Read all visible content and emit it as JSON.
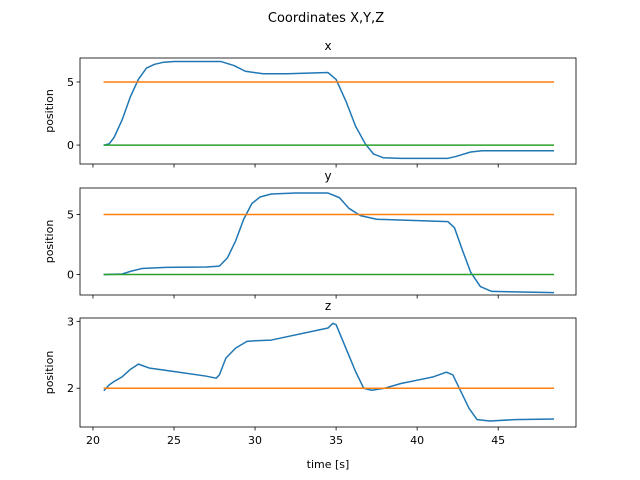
{
  "chart_data": {
    "type": "line",
    "title": "Coordinates X,Y,Z",
    "xlabel": "time [s]",
    "xlim": [
      19.2,
      49.8
    ],
    "xticks": [
      20,
      25,
      30,
      35,
      40,
      45
    ],
    "colors": [
      "#1f77b4",
      "#ff7f0e",
      "#2ca02c"
    ],
    "subplots": [
      {
        "title": "x",
        "ylabel": "position",
        "ylim": [
          -1.5,
          6.9
        ],
        "yticks": [
          0,
          5
        ],
        "show_xticklabels": false,
        "series": [
          {
            "color": "#1f77b4",
            "points": [
              [
                20.7,
                0
              ],
              [
                21.0,
                0.1
              ],
              [
                21.3,
                0.6
              ],
              [
                21.8,
                2.0
              ],
              [
                22.3,
                3.8
              ],
              [
                22.8,
                5.2
              ],
              [
                23.3,
                6.1
              ],
              [
                23.8,
                6.4
              ],
              [
                24.3,
                6.55
              ],
              [
                25.0,
                6.62
              ],
              [
                27.9,
                6.62
              ],
              [
                28.7,
                6.3
              ],
              [
                29.4,
                5.85
              ],
              [
                30.5,
                5.65
              ],
              [
                32.0,
                5.65
              ],
              [
                34.5,
                5.75
              ],
              [
                35.0,
                5.2
              ],
              [
                35.6,
                3.5
              ],
              [
                36.2,
                1.5
              ],
              [
                36.8,
                0.1
              ],
              [
                37.3,
                -0.7
              ],
              [
                37.9,
                -1.0
              ],
              [
                39.0,
                -1.05
              ],
              [
                41.9,
                -1.05
              ],
              [
                42.4,
                -0.9
              ],
              [
                43.3,
                -0.55
              ],
              [
                44.0,
                -0.45
              ],
              [
                48.4,
                -0.45
              ]
            ]
          },
          {
            "color": "#ff7f0e",
            "points": [
              [
                20.7,
                5
              ],
              [
                48.4,
                5
              ]
            ]
          },
          {
            "color": "#2ca02c",
            "points": [
              [
                20.7,
                0
              ],
              [
                48.4,
                0
              ]
            ]
          }
        ]
      },
      {
        "title": "y",
        "ylabel": "position",
        "ylim": [
          -1.7,
          7.2
        ],
        "yticks": [
          0,
          5
        ],
        "show_xticklabels": false,
        "series": [
          {
            "color": "#1f77b4",
            "points": [
              [
                20.7,
                0
              ],
              [
                21.8,
                0.05
              ],
              [
                22.4,
                0.3
              ],
              [
                23.0,
                0.5
              ],
              [
                24.5,
                0.6
              ],
              [
                27.0,
                0.63
              ],
              [
                27.8,
                0.7
              ],
              [
                28.3,
                1.4
              ],
              [
                28.8,
                2.8
              ],
              [
                29.3,
                4.6
              ],
              [
                29.8,
                5.9
              ],
              [
                30.3,
                6.45
              ],
              [
                31.0,
                6.7
              ],
              [
                32.5,
                6.78
              ],
              [
                34.5,
                6.78
              ],
              [
                35.2,
                6.4
              ],
              [
                35.8,
                5.5
              ],
              [
                36.5,
                4.9
              ],
              [
                37.5,
                4.6
              ],
              [
                41.9,
                4.4
              ],
              [
                42.3,
                3.9
              ],
              [
                42.8,
                2.0
              ],
              [
                43.3,
                0.2
              ],
              [
                43.9,
                -1.0
              ],
              [
                44.6,
                -1.4
              ],
              [
                48.4,
                -1.5
              ]
            ]
          },
          {
            "color": "#ff7f0e",
            "points": [
              [
                20.7,
                5
              ],
              [
                48.4,
                5
              ]
            ]
          },
          {
            "color": "#2ca02c",
            "points": [
              [
                20.7,
                0
              ],
              [
                48.4,
                0
              ]
            ]
          }
        ]
      },
      {
        "title": "z",
        "ylabel": "position",
        "ylim": [
          1.42,
          3.05
        ],
        "yticks": [
          2,
          3
        ],
        "show_xticklabels": true,
        "series": [
          {
            "color": "#1f77b4",
            "points": [
              [
                20.7,
                1.97
              ],
              [
                21.0,
                2.05
              ],
              [
                21.3,
                2.1
              ],
              [
                21.8,
                2.17
              ],
              [
                22.3,
                2.28
              ],
              [
                22.8,
                2.36
              ],
              [
                23.5,
                2.3
              ],
              [
                25.0,
                2.25
              ],
              [
                27.0,
                2.18
              ],
              [
                27.6,
                2.15
              ],
              [
                27.8,
                2.2
              ],
              [
                28.2,
                2.45
              ],
              [
                28.8,
                2.6
              ],
              [
                29.5,
                2.7
              ],
              [
                30.0,
                2.71
              ],
              [
                31.0,
                2.72
              ],
              [
                34.5,
                2.9
              ],
              [
                34.8,
                2.97
              ],
              [
                35.0,
                2.95
              ],
              [
                35.6,
                2.6
              ],
              [
                36.2,
                2.25
              ],
              [
                36.7,
                2.0
              ],
              [
                37.2,
                1.97
              ],
              [
                38.0,
                2.0
              ],
              [
                39.0,
                2.07
              ],
              [
                40.0,
                2.12
              ],
              [
                41.0,
                2.17
              ],
              [
                41.8,
                2.24
              ],
              [
                42.2,
                2.2
              ],
              [
                42.7,
                1.95
              ],
              [
                43.2,
                1.7
              ],
              [
                43.7,
                1.53
              ],
              [
                44.5,
                1.51
              ],
              [
                46.0,
                1.53
              ],
              [
                48.4,
                1.54
              ]
            ]
          },
          {
            "color": "#ff7f0e",
            "points": [
              [
                20.7,
                2
              ],
              [
                48.4,
                2
              ]
            ]
          }
        ]
      }
    ]
  }
}
